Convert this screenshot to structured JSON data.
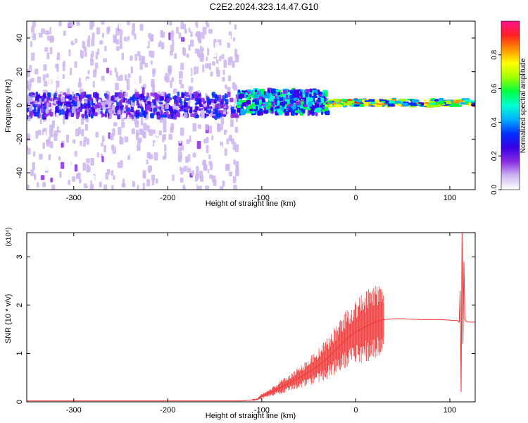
{
  "title": "C2E2.2024.323.14.47.G10",
  "chart_data": [
    {
      "type": "heatmap",
      "xlabel": "Height of straight line (km)",
      "ylabel": "Frequency (Hz)",
      "xlim": [
        -350,
        127
      ],
      "ylim": [
        -50,
        50
      ],
      "xticks": [
        -300,
        -200,
        -100,
        0,
        100
      ],
      "yticks": [
        -40,
        -20,
        0,
        20,
        40
      ],
      "colorbar": {
        "label": "Normalized spectral amplitude",
        "range": [
          0,
          1
        ],
        "ticks": [
          0.0,
          0.2,
          0.4,
          0.6,
          0.8
        ],
        "colors": [
          "#ffffff",
          "#cdb6f0",
          "#8a2be2",
          "#3a00e6",
          "#0030ff",
          "#00b0ff",
          "#00ffd0",
          "#00ff40",
          "#a0ff00",
          "#ffff00",
          "#ff9000",
          "#ff2020",
          "#ff1090"
        ]
      },
      "regions": [
        {
          "x": [
            -350,
            -125
          ],
          "frequency_center": 0,
          "description_level": 0.2
        },
        {
          "x": [
            -125,
            -30
          ],
          "frequency_center": 2,
          "description_level": 0.45
        },
        {
          "x": [
            -30,
            127
          ],
          "frequency_center": 1.5,
          "description_level": 0.85
        }
      ]
    },
    {
      "type": "line",
      "xlabel": "Height of straight line (km)",
      "ylabel": "SNR (10 * v/v)",
      "y_multiplier": "(x10⁴)",
      "xlim": [
        -350,
        127
      ],
      "ylim": [
        0,
        3.5
      ],
      "xticks": [
        -300,
        -200,
        -100,
        0,
        100
      ],
      "yticks": [
        0,
        1,
        2,
        3
      ],
      "series": [
        {
          "color": "#ee3333",
          "x": [
            -350,
            -300,
            -200,
            -120,
            -105,
            -100,
            -90,
            -80,
            -70,
            -60,
            -50,
            -40,
            -30,
            -20,
            -10,
            0,
            10,
            20,
            30,
            40,
            50,
            60,
            70,
            80,
            90,
            100,
            108,
            110,
            111,
            112,
            113,
            114,
            115,
            116,
            118,
            120,
            127
          ],
          "y": [
            0.02,
            0.02,
            0.02,
            0.02,
            0.05,
            0.12,
            0.2,
            0.3,
            0.4,
            0.5,
            0.62,
            0.75,
            0.9,
            1.1,
            1.3,
            1.45,
            1.55,
            1.65,
            1.7,
            1.72,
            1.72,
            1.71,
            1.7,
            1.7,
            1.7,
            1.69,
            1.68,
            1.65,
            2.3,
            0.2,
            3.5,
            1.2,
            2.9,
            1.7,
            1.66,
            1.65,
            1.65
          ]
        }
      ]
    }
  ]
}
